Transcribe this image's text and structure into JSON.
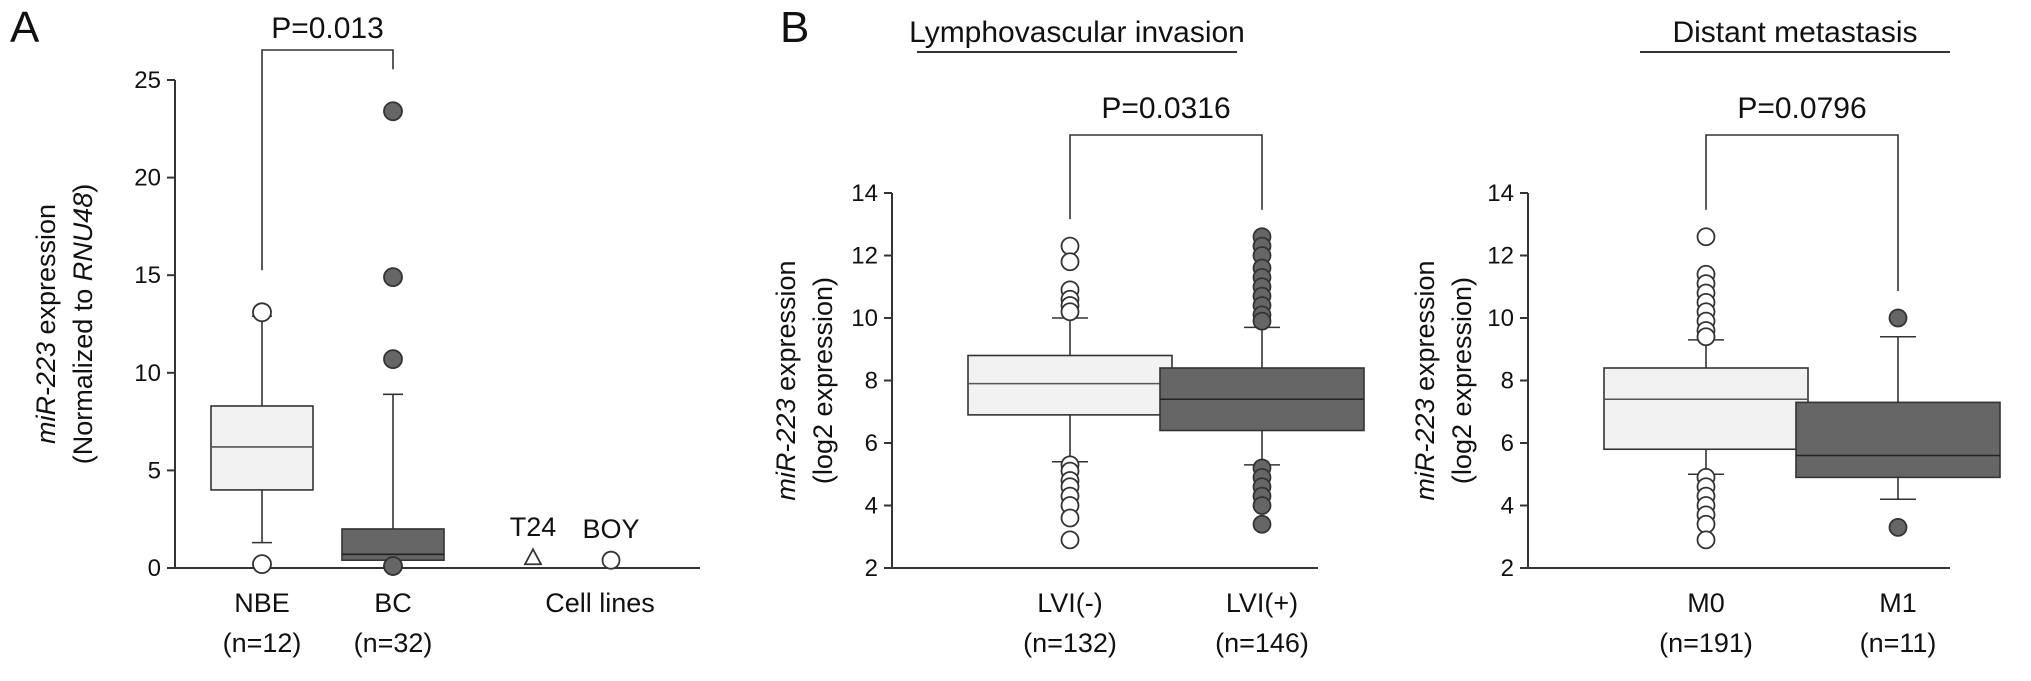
{
  "chart_data": [
    {
      "type": "box",
      "panel": "A",
      "ylabel": {
        "italic": "miR-223",
        "plain": " expression",
        "line2_prefix": "(Normalized to ",
        "line2_italic": "RNU48",
        "line2_suffix": ")"
      },
      "ylim": [
        0,
        25
      ],
      "yticks": [
        0,
        5,
        10,
        15,
        20,
        25
      ],
      "baseline": 0,
      "p_value_label": "P=0.013",
      "categories": [
        {
          "name": "NBE",
          "n": "(n=12)",
          "color": "#f2f2f2",
          "q1": 4.0,
          "median": 6.2,
          "q3": 8.3,
          "whisker_low": 1.3,
          "whisker_high": 12.9,
          "outliers": [
            13.1,
            0.2
          ],
          "marker": "circle-open"
        },
        {
          "name": "BC",
          "n": "(n=32)",
          "color": "#666666",
          "q1": 0.4,
          "median": 0.7,
          "q3": 2.0,
          "whisker_low": 0.1,
          "whisker_high": 8.9,
          "outliers": [
            23.4,
            14.9,
            10.7,
            0.1
          ],
          "marker": "circle-filled"
        }
      ],
      "cell_lines": {
        "label": "Cell lines",
        "points": [
          {
            "name": "T24",
            "value": 0.5,
            "marker": "triangle-open"
          },
          {
            "name": "BOY",
            "value": 0.4,
            "marker": "circle-open"
          }
        ]
      }
    },
    {
      "type": "box",
      "panel": "B",
      "title": "Lymphovascular invasion",
      "ylabel": {
        "italic": "miR-223",
        "plain": " expression",
        "line2": "(log2 expression)"
      },
      "ylim": [
        2,
        14
      ],
      "yticks": [
        2,
        4,
        6,
        8,
        10,
        12,
        14
      ],
      "p_value_label": "P=0.0316",
      "categories": [
        {
          "name": "LVI(-)",
          "n": "(n=132)",
          "color": "#f2f2f2",
          "q1": 6.9,
          "median": 7.9,
          "q3": 8.8,
          "whisker_low": 5.4,
          "whisker_high": 10.0,
          "outliers": [
            12.3,
            11.8,
            10.9,
            10.6,
            10.4,
            10.2,
            5.3,
            5.1,
            4.8,
            4.6,
            4.3,
            4.0,
            3.6,
            2.9
          ],
          "marker": "circle-open"
        },
        {
          "name": "LVI(+)",
          "n": "(n=146)",
          "color": "#666666",
          "q1": 6.4,
          "median": 7.4,
          "q3": 8.4,
          "whisker_low": 5.3,
          "whisker_high": 9.7,
          "outliers": [
            12.6,
            12.3,
            12.0,
            11.6,
            11.3,
            11.0,
            10.7,
            10.4,
            10.1,
            9.9,
            5.2,
            4.9,
            4.6,
            4.3,
            4.0,
            3.4
          ],
          "marker": "circle-filled"
        }
      ]
    },
    {
      "type": "box",
      "title": "Distant metastasis",
      "ylabel": {
        "italic": "miR-223",
        "plain": " expression",
        "line2": "(log2 expression)"
      },
      "ylim": [
        2,
        14
      ],
      "yticks": [
        2,
        4,
        6,
        8,
        10,
        12,
        14
      ],
      "p_value_label": "P=0.0796",
      "categories": [
        {
          "name": "M0",
          "n": "(n=191)",
          "color": "#f2f2f2",
          "q1": 5.8,
          "median": 7.4,
          "q3": 8.4,
          "whisker_low": 5.0,
          "whisker_high": 9.3,
          "outliers": [
            12.6,
            11.4,
            11.1,
            10.8,
            10.5,
            10.2,
            9.9,
            9.6,
            9.4,
            4.9,
            4.6,
            4.3,
            4.0,
            3.7,
            3.4,
            2.9
          ],
          "marker": "circle-open"
        },
        {
          "name": "M1",
          "n": "(n=11)",
          "color": "#666666",
          "q1": 4.9,
          "median": 5.6,
          "q3": 7.3,
          "whisker_low": 4.2,
          "whisker_high": 9.4,
          "outliers": [
            10.0,
            3.3
          ],
          "marker": "circle-filled"
        }
      ]
    }
  ]
}
